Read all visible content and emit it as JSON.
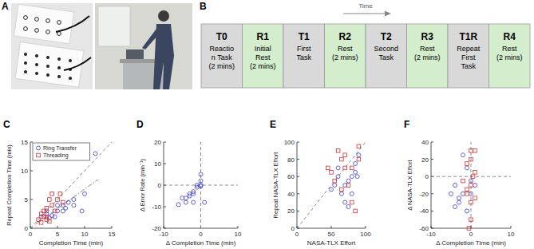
{
  "figure": {
    "panel_a": {
      "label": "A"
    },
    "panel_b": {
      "label": "B",
      "arrow_label": "Time",
      "boxes": [
        {
          "code": "T0",
          "lines": [
            "Reactio",
            "n Task",
            "(2 mins)"
          ],
          "color": "#d9d9d9"
        },
        {
          "code": "R1",
          "lines": [
            "Initial",
            "Rest",
            "(2 mins)"
          ],
          "color": "#d4edcc"
        },
        {
          "code": "T1",
          "lines": [
            "First",
            "Task"
          ],
          "color": "#d9d9d9"
        },
        {
          "code": "R2",
          "lines": [
            "Rest",
            "(2 mins)"
          ],
          "color": "#d4edcc"
        },
        {
          "code": "T2",
          "lines": [
            "Second",
            "Task"
          ],
          "color": "#d9d9d9"
        },
        {
          "code": "R3",
          "lines": [
            "Rest",
            "(2 mins)"
          ],
          "color": "#d4edcc"
        },
        {
          "code": "T1R",
          "lines": [
            "Repeat",
            "First",
            "Task"
          ],
          "color": "#d9d9d9"
        },
        {
          "code": "R4",
          "lines": [
            "Rest",
            "(2 mins)"
          ],
          "color": "#d4edcc"
        }
      ]
    }
  },
  "chart_data": [
    {
      "label": "C",
      "type": "scatter",
      "x_label": "Completion Time (min)",
      "y_label": "Repeat Completion Time (min)",
      "xlim": [
        0,
        15
      ],
      "ylim": [
        0,
        15
      ],
      "xticks": [
        0,
        5,
        10,
        15
      ],
      "yticks": [
        0,
        5,
        10,
        15
      ],
      "legend": "upper left",
      "series": [
        {
          "name": "Ring Transfer",
          "color": "#3c3cc8",
          "marker": "circle",
          "x": [
            2,
            3,
            3.5,
            4,
            5,
            6,
            6.5,
            7,
            8,
            8,
            9.5,
            10,
            12,
            6,
            5,
            3,
            4.5
          ],
          "values": [
            2,
            2.5,
            1.8,
            2.2,
            3,
            4,
            3.5,
            4.5,
            4,
            5,
            3,
            6,
            13,
            3,
            4,
            3,
            2
          ]
        },
        {
          "name": "Threading",
          "color": "#d03030",
          "marker": "square",
          "x": [
            1.5,
            2,
            2.5,
            3,
            3,
            3.5,
            4,
            4,
            4.5,
            5,
            5.5,
            2.5,
            3,
            6,
            3.5,
            2
          ],
          "values": [
            1.5,
            1,
            3,
            3.5,
            2,
            5,
            4,
            6,
            3,
            5,
            6,
            2,
            1.5,
            4.5,
            1.2,
            2.5
          ]
        }
      ],
      "lines": [
        {
          "x": [
            0,
            15
          ],
          "y": [
            0,
            15
          ],
          "color": "#707070",
          "line_style": "dashed"
        },
        {
          "x": [
            1,
            12.5
          ],
          "y": [
            0.7,
            8.5
          ],
          "color": "#707070",
          "line_style": "dashdot"
        }
      ]
    },
    {
      "label": "D",
      "type": "scatter",
      "x_label": "Δ Completion Time (min)",
      "y_label": "Δ Error Rate (min⁻¹)",
      "xlim": [
        -10,
        10
      ],
      "ylim": [
        -20,
        20
      ],
      "xticks": [
        -10,
        0,
        10
      ],
      "yticks": [
        -20,
        -10,
        0,
        10,
        20
      ],
      "series": [
        {
          "name": "Ring Transfer",
          "color": "#3c3cc8",
          "marker": "circle",
          "x": [
            -6,
            -4,
            -4,
            -3,
            -3,
            -2,
            -2,
            -1,
            -1,
            0,
            0,
            0,
            0,
            -5,
            1,
            -2
          ],
          "values": [
            -9,
            -8,
            -6,
            -5,
            -4,
            -4,
            -3,
            -1,
            0,
            0,
            -0.5,
            5,
            2,
            -6,
            -8,
            -8
          ]
        }
      ],
      "lines": [
        {
          "x": [
            0,
            0
          ],
          "y": [
            -20,
            20
          ],
          "color": "#707070",
          "line_style": "dashed"
        },
        {
          "x": [
            -10,
            10
          ],
          "y": [
            0,
            0
          ],
          "color": "#707070",
          "line_style": "dashed"
        }
      ]
    },
    {
      "label": "E",
      "type": "scatter",
      "x_label": "NASA-TLX Effort",
      "y_label": "Repeat NASA-TLX Effort",
      "xlim": [
        0,
        100
      ],
      "ylim": [
        0,
        100
      ],
      "xticks": [
        0,
        50,
        100
      ],
      "yticks": [
        0,
        20,
        40,
        60,
        80,
        100
      ],
      "series": [
        {
          "name": "Ring Transfer",
          "color": "#3c3cc8",
          "marker": "circle",
          "x": [
            55,
            60,
            65,
            70,
            75,
            80,
            85,
            85,
            90,
            75,
            70,
            80,
            60,
            50,
            88
          ],
          "values": [
            50,
            60,
            40,
            30,
            55,
            60,
            75,
            65,
            85,
            25,
            50,
            40,
            70,
            45,
            60
          ]
        },
        {
          "name": "Threading",
          "color": "#d03030",
          "marker": "square",
          "x": [
            50,
            60,
            65,
            70,
            75,
            80,
            85,
            90,
            65,
            55,
            70,
            80,
            45,
            90
          ],
          "values": [
            65,
            90,
            80,
            70,
            50,
            70,
            20,
            95,
            45,
            55,
            85,
            30,
            70,
            80
          ]
        }
      ],
      "lines": [
        {
          "x": [
            0,
            100
          ],
          "y": [
            0,
            100
          ],
          "color": "#707070",
          "line_style": "dashed"
        }
      ]
    },
    {
      "label": "F",
      "type": "scatter",
      "x_label": "Δ Completion Time (min)",
      "y_label": "Δ NASA-TLX Effort",
      "xlim": [
        -10,
        10
      ],
      "ylim": [
        -60,
        40
      ],
      "xticks": [
        -10,
        0,
        10
      ],
      "yticks": [
        -60,
        -40,
        -20,
        0,
        20,
        40
      ],
      "series": [
        {
          "name": "Ring Transfer",
          "color": "#3c3cc8",
          "marker": "circle",
          "x": [
            -5,
            -4,
            -3,
            -2,
            -2,
            -1,
            -1,
            0,
            -3,
            -4,
            1,
            0
          ],
          "values": [
            -20,
            -10,
            -30,
            -20,
            25,
            -40,
            10,
            -5,
            -25,
            -35,
            -10,
            -20
          ]
        },
        {
          "name": "Threading",
          "color": "#d03030",
          "marker": "square",
          "x": [
            -2,
            -1,
            0,
            0,
            1,
            0,
            -1,
            0,
            0,
            1,
            -0.5,
            0.5,
            1,
            -1
          ],
          "values": [
            -5,
            -15,
            30,
            -10,
            30,
            20,
            -20,
            -30,
            -50,
            -25,
            -60,
            0,
            5,
            15
          ]
        }
      ],
      "lines": [
        {
          "x": [
            0,
            0
          ],
          "y": [
            -60,
            40
          ],
          "color": "#707070",
          "line_style": "dashed"
        },
        {
          "x": [
            -10,
            10
          ],
          "y": [
            0,
            0
          ],
          "color": "#707070",
          "line_style": "dashed"
        }
      ]
    }
  ]
}
